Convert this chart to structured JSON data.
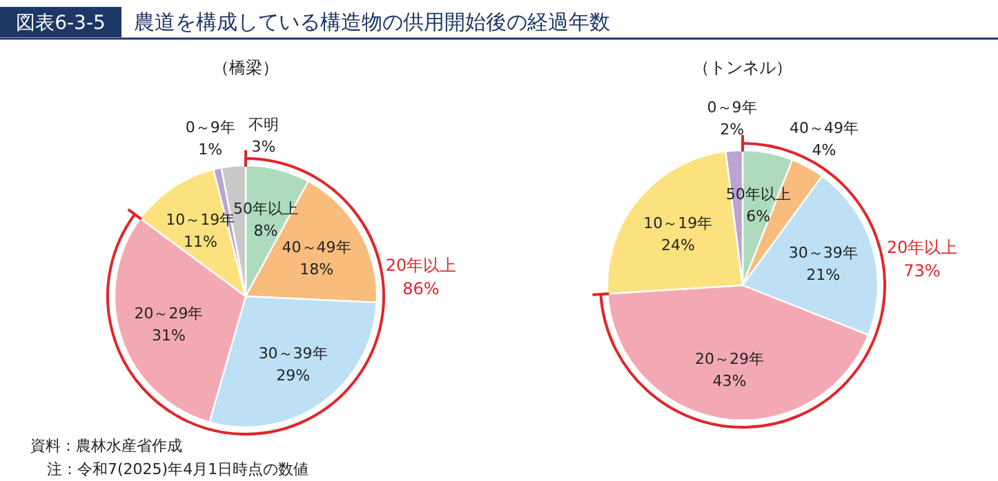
{
  "chart_data": [
    {
      "type": "other",
      "title": "農道を構成している構造物の供用開始後の経過年数",
      "annotations": [
        "図表6-3-5",
        "資料：農林水産省作成",
        "注：令和7(2025)年4月1日時点の数値"
      ]
    },
    {
      "type": "pie",
      "title": "（橋梁）",
      "categories": [
        "50年以上",
        "40～49年",
        "30～39年",
        "20～29年",
        "10～19年",
        "0～9年",
        "不明"
      ],
      "values": [
        8,
        18,
        29,
        31,
        11,
        1,
        3
      ],
      "value_labels": [
        "8%",
        "18%",
        "29%",
        "31%",
        "11%",
        "1%",
        "3%"
      ],
      "colors": [
        "#aedbbd",
        "#f8bc7c",
        "#bde0f4",
        "#f3a9b3",
        "#fce27f",
        "#bba3d2",
        "#c9c9c9"
      ],
      "annotations": [
        "20年以上 86%"
      ]
    },
    {
      "type": "pie",
      "title": "（トンネル）",
      "categories": [
        "50年以上",
        "40～49年",
        "30～39年",
        "20～29年",
        "10～19年",
        "0～9年"
      ],
      "values": [
        6,
        4,
        21,
        43,
        24,
        2
      ],
      "value_labels": [
        "6%",
        "4%",
        "21%",
        "43%",
        "24%",
        "2%"
      ],
      "colors": [
        "#aedbbd",
        "#f8bc7c",
        "#bde0f4",
        "#f3a9b3",
        "#fce27f",
        "#bba3d2"
      ],
      "annotations": [
        "20年以上 73%"
      ]
    }
  ]
}
